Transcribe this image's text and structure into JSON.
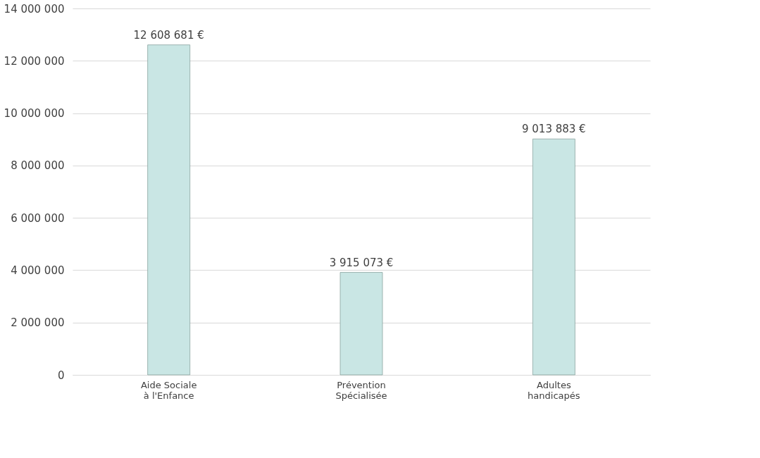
{
  "chart_data": {
    "type": "bar",
    "categories": [
      "Aide Sociale à l'Enfance",
      "Prévention Spécialisée",
      "Adultes handicapés"
    ],
    "values": [
      12608681,
      3915073,
      9013883
    ],
    "value_labels": [
      "12 608 681 €",
      "3 915 073 €",
      "9 013 883 €"
    ],
    "color": "#c9e6e4",
    "ylim": [
      0,
      14000000
    ],
    "yticks": [
      {
        "value": 0,
        "label": "0"
      },
      {
        "value": 2000000,
        "label": "2 000 000"
      },
      {
        "value": 4000000,
        "label": "4 000 000"
      },
      {
        "value": 6000000,
        "label": "6 000 000"
      },
      {
        "value": 8000000,
        "label": "8 000 000"
      },
      {
        "value": 10000000,
        "label": "10 000 000"
      },
      {
        "value": 12000000,
        "label": "12 000 000"
      },
      {
        "value": 14000000,
        "label": "14 000 000"
      }
    ],
    "grid": "y"
  }
}
